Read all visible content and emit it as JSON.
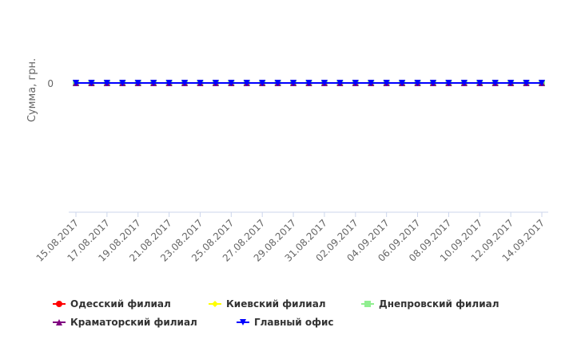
{
  "chart_data": {
    "type": "line",
    "ylabel": "Сумма, грн.",
    "y_ticks": [
      "0"
    ],
    "x": [
      "15.08.2017",
      "16.08.2017",
      "17.08.2017",
      "18.08.2017",
      "19.08.2017",
      "20.08.2017",
      "21.08.2017",
      "22.08.2017",
      "23.08.2017",
      "24.08.2017",
      "25.08.2017",
      "26.08.2017",
      "27.08.2017",
      "28.08.2017",
      "29.08.2017",
      "30.08.2017",
      "31.08.2017",
      "01.09.2017",
      "02.09.2017",
      "03.09.2017",
      "04.09.2017",
      "05.09.2017",
      "06.09.2017",
      "07.09.2017",
      "08.09.2017",
      "09.09.2017",
      "10.09.2017",
      "11.09.2017",
      "12.09.2017",
      "13.09.2017",
      "14.09.2017"
    ],
    "x_tick_labels": [
      "15.08.2017",
      "17.08.2017",
      "19.08.2017",
      "21.08.2017",
      "23.08.2017",
      "25.08.2017",
      "27.08.2017",
      "29.08.2017",
      "31.08.2017",
      "02.09.2017",
      "04.09.2017",
      "06.09.2017",
      "08.09.2017",
      "10.09.2017",
      "12.09.2017",
      "14.09.2017"
    ],
    "series": [
      {
        "name": "Одесский филиал",
        "color": "#ff0000",
        "marker": "circle",
        "values": [
          0,
          0,
          0,
          0,
          0,
          0,
          0,
          0,
          0,
          0,
          0,
          0,
          0,
          0,
          0,
          0,
          0,
          0,
          0,
          0,
          0,
          0,
          0,
          0,
          0,
          0,
          0,
          0,
          0,
          0,
          0
        ]
      },
      {
        "name": "Киевский филиал",
        "color": "#ffff00",
        "marker": "diamond",
        "values": [
          0,
          0,
          0,
          0,
          0,
          0,
          0,
          0,
          0,
          0,
          0,
          0,
          0,
          0,
          0,
          0,
          0,
          0,
          0,
          0,
          0,
          0,
          0,
          0,
          0,
          0,
          0,
          0,
          0,
          0,
          0
        ]
      },
      {
        "name": "Днепровский филиал",
        "color": "#90ee90",
        "marker": "square",
        "values": [
          0,
          0,
          0,
          0,
          0,
          0,
          0,
          0,
          0,
          0,
          0,
          0,
          0,
          0,
          0,
          0,
          0,
          0,
          0,
          0,
          0,
          0,
          0,
          0,
          0,
          0,
          0,
          0,
          0,
          0,
          0
        ]
      },
      {
        "name": "Краматорский филиал",
        "color": "#800080",
        "marker": "triangle",
        "values": [
          0,
          0,
          0,
          0,
          0,
          0,
          0,
          0,
          0,
          0,
          0,
          0,
          0,
          0,
          0,
          0,
          0,
          0,
          0,
          0,
          0,
          0,
          0,
          0,
          0,
          0,
          0,
          0,
          0,
          0,
          0
        ]
      },
      {
        "name": "Главный офис",
        "color": "#0000ff",
        "marker": "triangle-down",
        "values": [
          0,
          0,
          0,
          0,
          0,
          0,
          0,
          0,
          0,
          0,
          0,
          0,
          0,
          0,
          0,
          0,
          0,
          0,
          0,
          0,
          0,
          0,
          0,
          0,
          0,
          0,
          0,
          0,
          0,
          0,
          0
        ]
      }
    ],
    "grid": false,
    "legend_position": "bottom-left"
  }
}
